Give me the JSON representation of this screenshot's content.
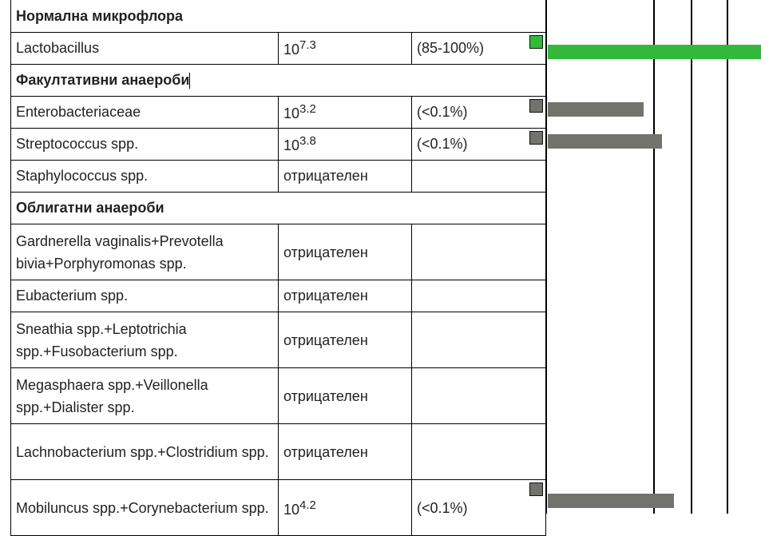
{
  "colors": {
    "normal": "#33b83b",
    "other": "#72736d"
  },
  "rows": [
    {
      "type": "section",
      "label": "Нормална микрофлора"
    },
    {
      "type": "item",
      "name": "Lactobacillus",
      "base": "10",
      "exp": "7.3",
      "pct": "(85-100%)",
      "color": "#33b83b"
    },
    {
      "type": "section",
      "label": "Факултативни анаероби"
    },
    {
      "type": "item",
      "name": "Enterobacteriaceae",
      "base": "10",
      "exp": "3.2",
      "pct": "(<0.1%)",
      "color": "#72736d"
    },
    {
      "type": "item",
      "name": "Streptococcus spp.",
      "base": "10",
      "exp": "3.8",
      "pct": "(<0.1%)",
      "color": "#72736d"
    },
    {
      "type": "item",
      "name": "Staphylococcus spp.",
      "result": "отрицателен"
    },
    {
      "type": "section",
      "label": "Облигатни анаероби"
    },
    {
      "type": "item2",
      "name": "Gardnerella vaginalis+Prevotella bivia+Porphyromonas spp.",
      "result": "отрицателен"
    },
    {
      "type": "item",
      "name": "Eubacterium spp.",
      "result": "отрицателен"
    },
    {
      "type": "item2",
      "name": "Sneathia spp.+Leptotrichia spp.+Fusobacterium spp.",
      "result": "отрицателен"
    },
    {
      "type": "item2",
      "name": "Megasphaera spp.+Veillonella spp.+Dialister spp.",
      "result": "отрицателен"
    },
    {
      "type": "item2",
      "name": "Lachnobacterium spp.+Clostridium spp.",
      "result": "отрицателен"
    },
    {
      "type": "item2",
      "name": "Mobiluncus spp.+Corynebacterium spp.",
      "base": "10",
      "exp": "4.2",
      "pct": "(<0.1%)",
      "color": "#72736d"
    }
  ]
}
